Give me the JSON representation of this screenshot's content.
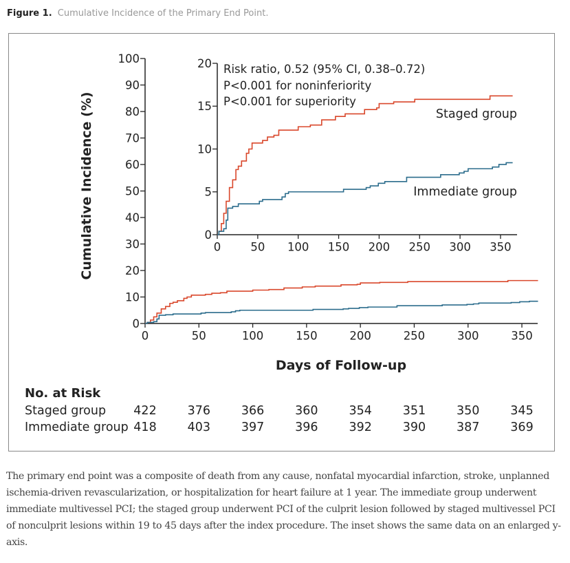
{
  "figure": {
    "label": "Figure 1.",
    "title": "Cumulative Incidence of the Primary End Point.",
    "caption": "The primary end point was a composite of death from any cause, nonfatal myocardial infarction, stroke, unplanned ischemia-driven revascularization, or hospitalization for heart failure at 1 year. The immediate group underwent immediate multivessel PCI; the staged group underwent PCI of the culprit lesion followed by staged multivessel PCI of nonculprit lesions within 19 to 45 days after the index procedure. The inset shows the same data on an enlarged y-axis."
  },
  "colors": {
    "staged": "#d9472b",
    "immediate": "#2b6c8c"
  },
  "chart_data": [
    {
      "type": "line",
      "step": true,
      "xlabel": "Days of Follow-up",
      "ylabel": "Cumulative Incidence (%)",
      "xlim": [
        0,
        365
      ],
      "ylim": [
        0,
        100
      ],
      "xticks": [
        0,
        50,
        100,
        150,
        200,
        250,
        300,
        350
      ],
      "yticks": [
        0,
        10,
        20,
        30,
        40,
        50,
        60,
        70,
        80,
        90,
        100
      ],
      "grid": false,
      "series": [
        {
          "name": "Staged group",
          "color": "#d9472b",
          "x": [
            0,
            2,
            5,
            8,
            11,
            15,
            19,
            23,
            26,
            30,
            36,
            39,
            43,
            56,
            62,
            70,
            76,
            100,
            115,
            129,
            146,
            158,
            182,
            197,
            200,
            218,
            244,
            337,
            365
          ],
          "y": [
            0,
            0.4,
            1.3,
            2.5,
            3.9,
            5.5,
            6.4,
            7.6,
            8.0,
            8.6,
            9.5,
            10.0,
            10.7,
            11.0,
            11.4,
            11.6,
            12.2,
            12.6,
            12.8,
            13.4,
            13.8,
            14.1,
            14.6,
            14.8,
            15.3,
            15.5,
            15.8,
            16.2,
            16.2
          ]
        },
        {
          "name": "Immediate group",
          "color": "#2b6c8c",
          "x": [
            0,
            2,
            8,
            11,
            13,
            19,
            26,
            52,
            56,
            80,
            84,
            88,
            156,
            184,
            189,
            199,
            207,
            234,
            276,
            299,
            305,
            310,
            340,
            348,
            357,
            365
          ],
          "y": [
            0,
            0.4,
            0.7,
            1.7,
            3.1,
            3.3,
            3.6,
            3.9,
            4.1,
            4.4,
            4.8,
            5.0,
            5.3,
            5.5,
            5.7,
            6.0,
            6.2,
            6.7,
            7.0,
            7.2,
            7.4,
            7.7,
            7.9,
            8.2,
            8.4,
            8.4
          ]
        }
      ]
    },
    {
      "type": "line",
      "step": true,
      "inset": true,
      "xlim": [
        0,
        365
      ],
      "ylim": [
        0,
        20
      ],
      "xticks": [
        0,
        50,
        100,
        150,
        200,
        250,
        300,
        350
      ],
      "yticks": [
        0,
        5,
        10,
        15,
        20
      ],
      "annotations": [
        "Risk ratio, 0.52 (95% CI, 0.38–0.72)",
        "P<0.001 for noninferiority",
        "P<0.001 for superiority"
      ],
      "labels": [
        "Staged group",
        "Immediate group"
      ],
      "note": "same data as main panel"
    }
  ],
  "risk_table": {
    "title": "No. at Risk",
    "rows": [
      {
        "label": "Staged group",
        "values": [
          "422",
          "376",
          "366",
          "360",
          "354",
          "351",
          "350",
          "345"
        ]
      },
      {
        "label": "Immediate group",
        "values": [
          "418",
          "403",
          "397",
          "396",
          "392",
          "390",
          "387",
          "369"
        ]
      }
    ]
  }
}
